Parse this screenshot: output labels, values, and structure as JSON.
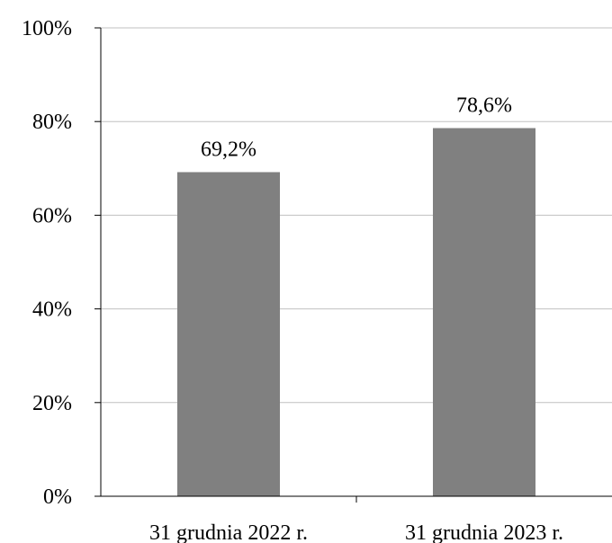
{
  "chart_data": {
    "type": "bar",
    "categories": [
      "31 grudnia 2022 r.",
      "31 grudnia 2023 r."
    ],
    "values": [
      69.2,
      78.6
    ],
    "data_labels": [
      "69,2%",
      "78,6%"
    ],
    "title": "",
    "xlabel": "",
    "ylabel": "",
    "ylim": [
      0,
      100
    ],
    "yticks": [
      0,
      20,
      40,
      60,
      80,
      100
    ],
    "ytick_labels": [
      "0%",
      "20%",
      "40%",
      "60%",
      "80%",
      "100%"
    ],
    "grid": true,
    "legend": "none",
    "colors": {
      "bar": "#808080",
      "grid": "#c0c0c0",
      "axis": "#000000"
    }
  }
}
